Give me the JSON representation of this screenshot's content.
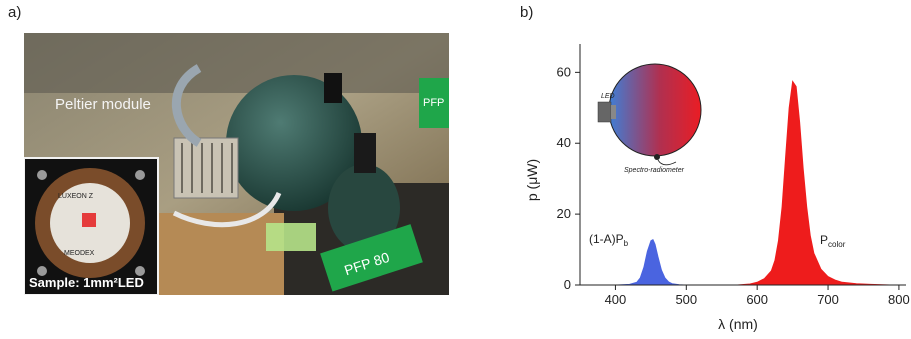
{
  "panels": {
    "a": "a)",
    "b": "b)"
  },
  "photo": {
    "caption": "Peltier module",
    "inset_caption": "Sample: 1mm²LED",
    "board_label_1": "LUXEON Z",
    "board_label_2": "MEODEX",
    "sign_label": "PFP 80",
    "sign_label_2": "PFP"
  },
  "chart_data": {
    "type": "area",
    "xlabel": "λ (nm)",
    "ylabel": "p (μW)",
    "xlim": [
      350,
      810
    ],
    "ylim": [
      0,
      68
    ],
    "x_ticks": [
      400,
      500,
      600,
      700,
      800
    ],
    "y_ticks": [
      0,
      20,
      40,
      60
    ],
    "series": [
      {
        "color": "#4a64e0",
        "x": [
          400,
          420,
          430,
          435,
          440,
          445,
          450,
          453,
          456,
          460,
          465,
          470,
          475,
          480,
          490,
          500
        ],
        "y": [
          0,
          0.2,
          0.8,
          2.0,
          5.0,
          9.5,
          12.5,
          12.8,
          11.5,
          8.0,
          4.2,
          2.0,
          0.9,
          0.4,
          0.1,
          0
        ]
      },
      {
        "color": "#ee1c1c",
        "x": [
          570,
          590,
          600,
          610,
          620,
          625,
          630,
          635,
          640,
          645,
          650,
          655,
          660,
          665,
          670,
          675,
          680,
          690,
          700,
          710,
          720,
          740,
          760,
          790
        ],
        "y": [
          0,
          0.3,
          0.8,
          1.8,
          4.0,
          7.0,
          12.5,
          22.0,
          36.0,
          50.0,
          57.5,
          56.0,
          46.0,
          33.0,
          22.0,
          14.0,
          9.0,
          4.5,
          2.4,
          1.4,
          0.8,
          0.4,
          0.2,
          0
        ]
      }
    ],
    "annotations": {
      "blue_peak": "(1-A)P",
      "blue_peak_sub": "b",
      "red_peak": "P",
      "red_peak_sub": "color",
      "inset_led": "LED",
      "inset_detector": "Spectro-radiometer"
    }
  }
}
